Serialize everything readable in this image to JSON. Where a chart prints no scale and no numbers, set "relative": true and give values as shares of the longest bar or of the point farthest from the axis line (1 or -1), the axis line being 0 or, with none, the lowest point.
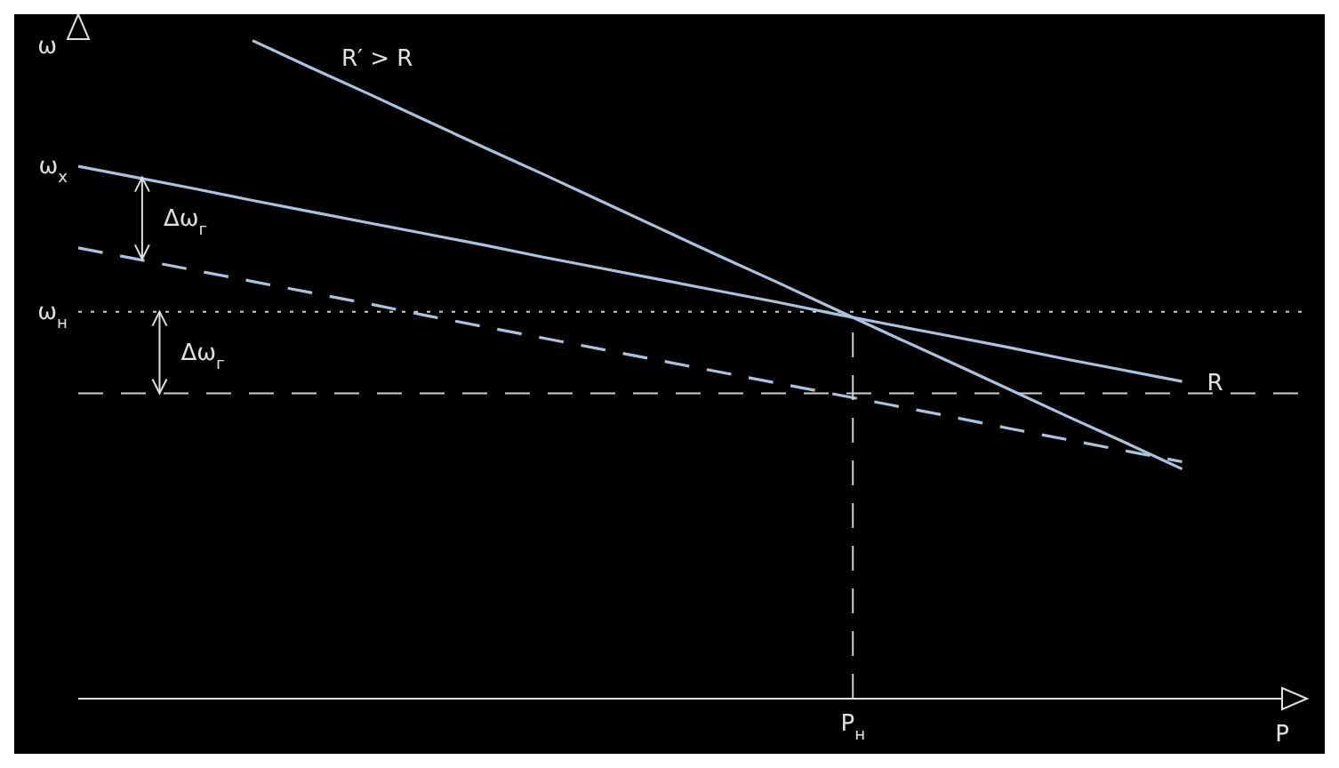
{
  "chart_data": {
    "type": "line",
    "relative": true,
    "xlabel": "P",
    "ylabel": "ω",
    "marker": "none",
    "categories": [
      null,
      null,
      null,
      null,
      null,
      null,
      null,
      null,
      null,
      null,
      null,
      null,
      null,
      null,
      null,
      null,
      null,
      null,
      null,
      null,
      null
    ],
    "series": [
      {
        "name": "R′ > R",
        "color": "#a8c4e0",
        "values": [
          null,
          null,
          null,
          1,
          0.959,
          0.919,
          0.878,
          0.837,
          0.797,
          0.756,
          0.715,
          0.674,
          0.634,
          0.593,
          0.552,
          0.512,
          0.471,
          0.43,
          0.39,
          0.349,
          null
        ],
        "line_style": "solid"
      },
      {
        "name": "R",
        "color": "#a8c4e0",
        "values": [
          0.809,
          0.792,
          0.775,
          0.757,
          0.74,
          0.723,
          0.706,
          0.689,
          0.671,
          0.654,
          0.637,
          0.62,
          0.603,
          0.585,
          0.568,
          0.551,
          0.534,
          0.516,
          0.499,
          0.482,
          null
        ],
        "line_style": "solid"
      },
      {
        "color": "#a8c4e0",
        "values": [
          0.685,
          0.668,
          0.651,
          0.634,
          0.617,
          0.6,
          0.582,
          0.565,
          0.548,
          0.531,
          0.514,
          0.497,
          0.48,
          0.463,
          0.446,
          0.429,
          0.411,
          0.394,
          0.377,
          0.36,
          null
        ],
        "line_style": "dashed"
      }
    ],
    "ref_lines": [
      {
        "axis": "y",
        "value": 0.588,
        "label": "ω$_{н}$",
        "color": "#d0d0d0",
        "line_style": "dotted"
      },
      {
        "axis": "y",
        "value": 0.464,
        "color": "#d0d0d0",
        "line_style": "dashed"
      }
    ],
    "annotations": [
      "ω$_{х}$",
      "Δω$_{г}$",
      "Δω$_{г}$",
      "P$_{н}$"
    ]
  }
}
